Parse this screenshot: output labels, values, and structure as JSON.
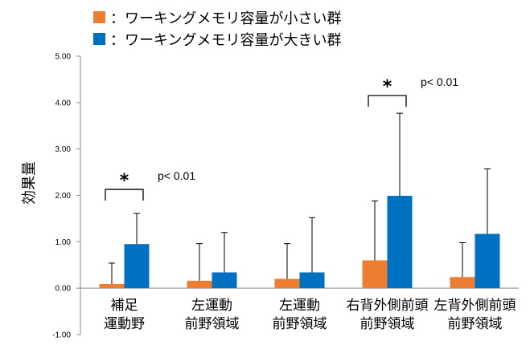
{
  "colors": {
    "small": "#ED7D31",
    "large": "#0070C0"
  },
  "legend": [
    {
      "marker": "：",
      "text": "ワーキングメモリ容量が小さい群"
    },
    {
      "marker": "：",
      "text": "ワーキングメモリ容量が大きい群"
    }
  ],
  "chart_data": {
    "type": "bar",
    "title": "",
    "xlabel": "",
    "ylabel": "効果量",
    "ylim": [
      -1.0,
      5.0
    ],
    "yticks": [
      "-1.00",
      "0.00",
      "1.00",
      "2.00",
      "3.00",
      "4.00",
      "5.00"
    ],
    "categories": [
      [
        "補足",
        "運動野"
      ],
      [
        "左運動",
        "前野領域"
      ],
      [
        "左運動",
        "前野領域"
      ],
      [
        "右背外側前頭",
        "前野領域"
      ],
      [
        "左背外側前頭",
        "前野領域"
      ]
    ],
    "series": [
      {
        "name": "ワーキングメモリ容量が小さい群",
        "values": [
          0.09,
          0.16,
          0.2,
          0.6,
          0.24
        ],
        "error": [
          0.45,
          0.8,
          0.76,
          1.28,
          0.74
        ]
      },
      {
        "name": "ワーキングメモリ容量が大きい群",
        "values": [
          0.95,
          0.34,
          0.34,
          1.99,
          1.17
        ],
        "error": [
          0.66,
          0.86,
          1.18,
          1.78,
          1.4
        ]
      }
    ],
    "annotations": [
      {
        "category": 0,
        "star": "*",
        "p_text": "p< 0.01"
      },
      {
        "category": 3,
        "star": "*",
        "p_text": "p< 0.01"
      }
    ]
  }
}
